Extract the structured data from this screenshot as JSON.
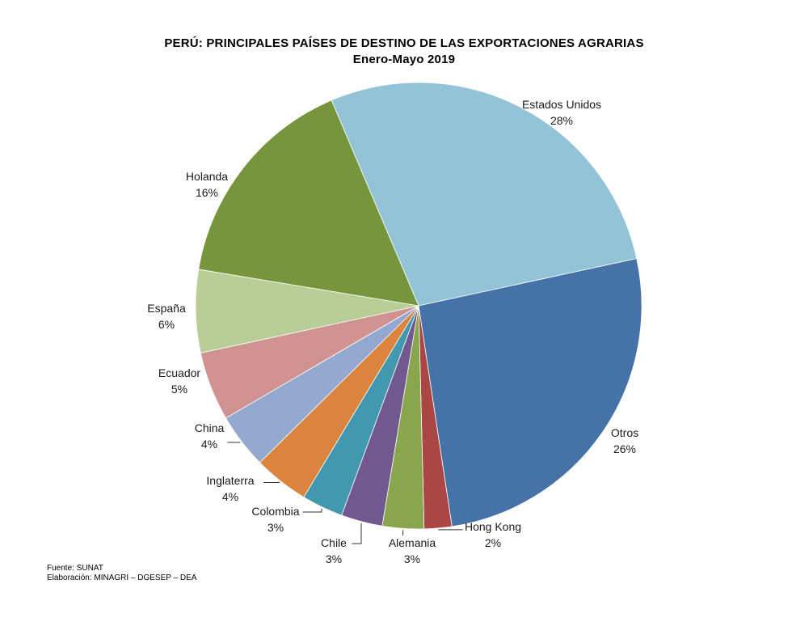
{
  "title": "PERÚ: PRINCIPALES  PAÍSES DE DESTINO DE LAS EXPORTACIONES  AGRARIAS",
  "subtitle": "Enero-Mayo 2019",
  "footer": {
    "source": "Fuente: SUNAT",
    "credit": "Elaboración: MINAGRI – DGESEP – DEA"
  },
  "chart_data": {
    "type": "pie",
    "title": "PERÚ: PRINCIPALES  PAÍSES DE DESTINO DE LAS EXPORTACIONES  AGRARIAS",
    "subtitle": "Enero-Mayo 2019",
    "slices": [
      {
        "label": "Estados Unidos",
        "value": 28,
        "display": "28%",
        "color": "#93c3d6"
      },
      {
        "label": "Otros",
        "value": 26,
        "display": "26%",
        "color": "#4572a7"
      },
      {
        "label": "Hong Kong",
        "value": 2,
        "display": "2%",
        "color": "#aa4643"
      },
      {
        "label": "Alemania",
        "value": 3,
        "display": "3%",
        "color": "#89a54e"
      },
      {
        "label": "Chile",
        "value": 3,
        "display": "3%",
        "color": "#71588f"
      },
      {
        "label": "Colombia",
        "value": 3,
        "display": "3%",
        "color": "#4198af"
      },
      {
        "label": "Inglaterra",
        "value": 4,
        "display": "4%",
        "color": "#db843d"
      },
      {
        "label": "China",
        "value": 4,
        "display": "4%",
        "color": "#93a9d0"
      },
      {
        "label": "Ecuador",
        "value": 5,
        "display": "5%",
        "color": "#d09392"
      },
      {
        "label": "España",
        "value": 6,
        "display": "6%",
        "color": "#b9cd96"
      },
      {
        "label": "Holanda",
        "value": 16,
        "display": "16%",
        "color": "#77953d"
      }
    ]
  }
}
